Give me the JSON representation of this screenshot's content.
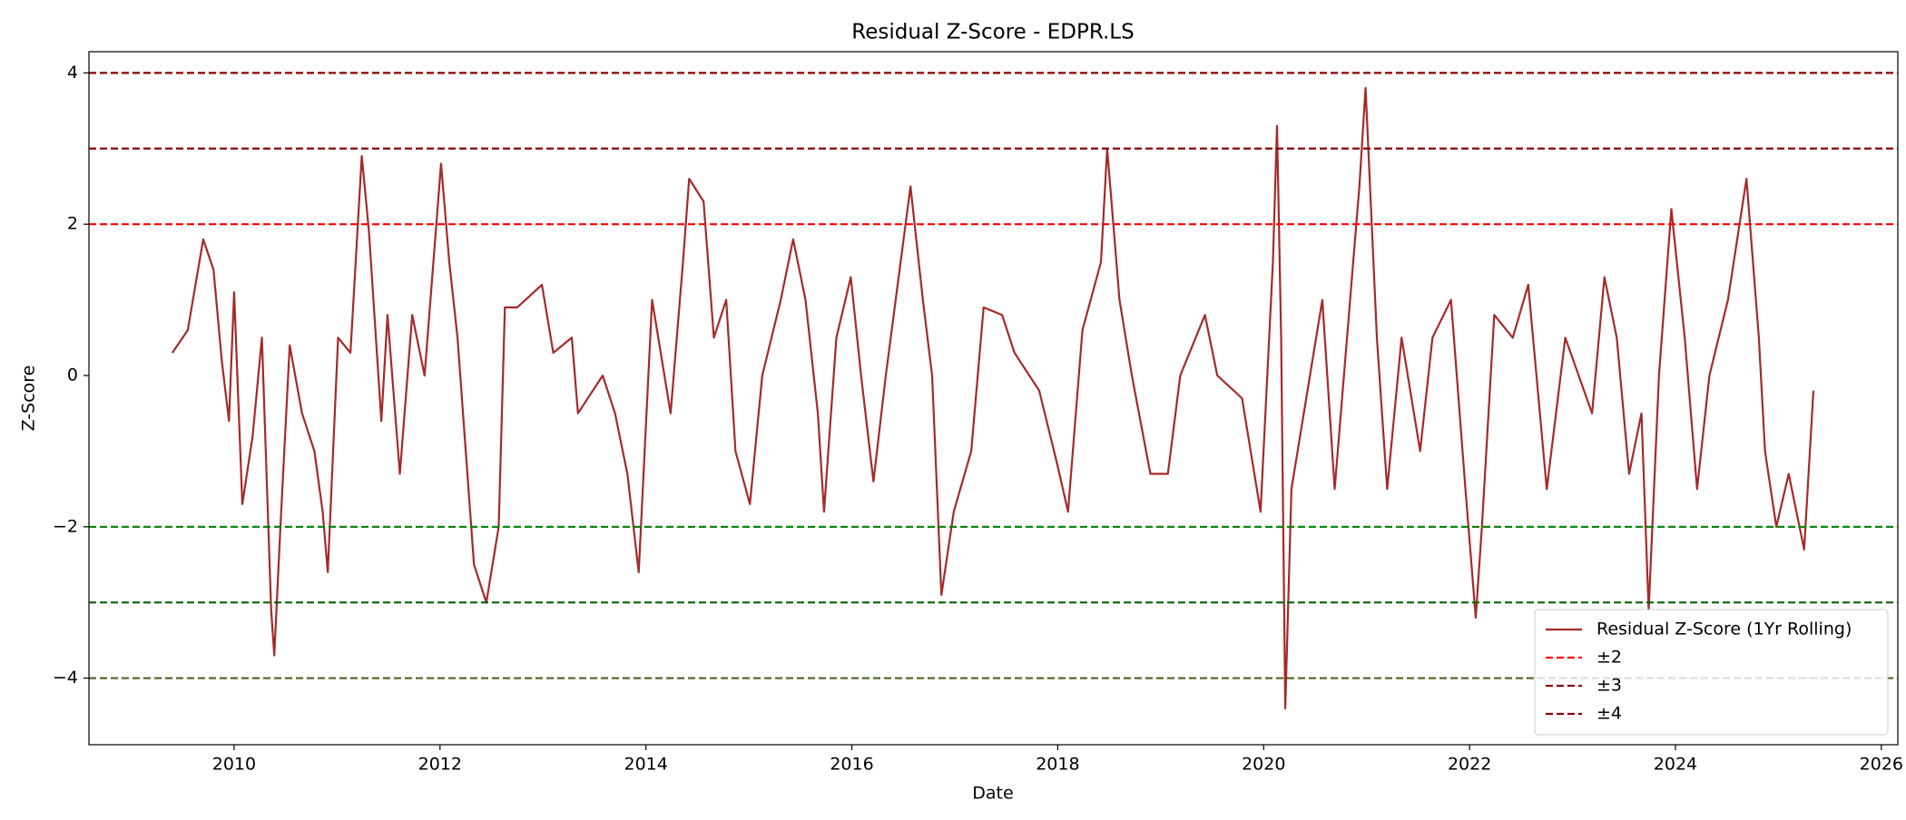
{
  "chart_data": {
    "type": "line",
    "title": "Residual Z-Score - EDPR.LS",
    "x_label": "Date",
    "y_label": "Z-Score",
    "x": [
      2009.4,
      2009.55,
      2009.7,
      2009.8,
      2009.88,
      2009.95,
      2010.0,
      2010.08,
      2010.18,
      2010.27,
      2010.36,
      2010.39,
      2010.45,
      2010.54,
      2010.66,
      2010.78,
      2010.86,
      2010.91,
      2011.01,
      2011.13,
      2011.24,
      2011.31,
      2011.43,
      2011.49,
      2011.61,
      2011.73,
      2011.85,
      2012.01,
      2012.09,
      2012.17,
      2012.33,
      2012.45,
      2012.57,
      2012.63,
      2012.75,
      2012.99,
      2013.1,
      2013.28,
      2013.34,
      2013.58,
      2013.7,
      2013.82,
      2013.93,
      2014.06,
      2014.24,
      2014.36,
      2014.42,
      2014.56,
      2014.66,
      2014.78,
      2014.87,
      2015.01,
      2015.13,
      2015.31,
      2015.43,
      2015.55,
      2015.67,
      2015.73,
      2015.85,
      2015.99,
      2016.09,
      2016.21,
      2016.33,
      2016.57,
      2016.69,
      2016.78,
      2016.87,
      2016.99,
      2017.16,
      2017.28,
      2017.46,
      2017.58,
      2017.82,
      2018.0,
      2018.1,
      2018.24,
      2018.42,
      2018.48,
      2018.6,
      2018.72,
      2018.9,
      2019.07,
      2019.19,
      2019.43,
      2019.55,
      2019.79,
      2019.97,
      2020.09,
      2020.13,
      2020.17,
      2020.21,
      2020.27,
      2020.39,
      2020.57,
      2020.69,
      2020.81,
      2020.93,
      2020.99,
      2021.05,
      2021.1,
      2021.2,
      2021.34,
      2021.52,
      2021.64,
      2021.82,
      2021.96,
      2022.06,
      2022.12,
      2022.24,
      2022.42,
      2022.57,
      2022.75,
      2022.93,
      2023.19,
      2023.31,
      2023.43,
      2023.55,
      2023.67,
      2023.74,
      2023.84,
      2023.96,
      2024.09,
      2024.21,
      2024.33,
      2024.51,
      2024.69,
      2024.81,
      2024.87,
      2024.98,
      2025.1,
      2025.25,
      2025.34
    ],
    "series": [
      {
        "name": "Residual Z-Score (1Yr Rolling)",
        "color": "#a52a2a",
        "values": [
          0.3,
          0.6,
          1.8,
          1.4,
          0.2,
          -0.6,
          1.1,
          -1.7,
          -0.8,
          0.5,
          -3.1,
          -3.7,
          -2.0,
          0.4,
          -0.5,
          -1.0,
          -1.8,
          -2.6,
          0.5,
          0.3,
          2.9,
          1.9,
          -0.6,
          0.8,
          -1.3,
          0.8,
          0.0,
          2.8,
          1.5,
          0.5,
          -2.5,
          -3.0,
          -2.0,
          0.9,
          0.9,
          1.2,
          0.3,
          0.5,
          -0.5,
          0.0,
          -0.5,
          -1.3,
          -2.6,
          1.0,
          -0.5,
          1.5,
          2.6,
          2.3,
          0.5,
          1.0,
          -1.0,
          -1.7,
          0.0,
          1.0,
          1.8,
          1.0,
          -0.5,
          -1.8,
          0.5,
          1.3,
          0.0,
          -1.4,
          0.0,
          2.5,
          1.0,
          0.0,
          -2.9,
          -1.8,
          -1.0,
          0.9,
          0.8,
          0.3,
          -0.2,
          -1.2,
          -1.8,
          0.6,
          1.5,
          3.0,
          1.0,
          0.0,
          -1.3,
          -1.3,
          0.0,
          0.8,
          0.0,
          -0.3,
          -1.8,
          1.5,
          3.3,
          0.5,
          -4.4,
          -1.5,
          -0.5,
          1.0,
          -1.5,
          0.5,
          2.5,
          3.8,
          2.0,
          0.5,
          -1.5,
          0.5,
          -1.0,
          0.5,
          1.0,
          -1.5,
          -3.2,
          -2.0,
          0.8,
          0.5,
          1.2,
          -1.5,
          0.5,
          -0.5,
          1.3,
          0.5,
          -1.3,
          -0.5,
          -3.1,
          0.0,
          2.2,
          0.5,
          -1.5,
          0.0,
          1.0,
          2.6,
          0.5,
          -1.0,
          -2.0,
          -1.3,
          -2.3,
          -0.2
        ]
      }
    ],
    "hlines": [
      {
        "value": 2,
        "color": "#ff0000",
        "label": "±2"
      },
      {
        "value": 3,
        "color": "#8b0000",
        "label": "±3"
      },
      {
        "value": 4,
        "color": "#8b0000",
        "label": "±4"
      },
      {
        "value": -2,
        "color": "#008000"
      },
      {
        "value": -3,
        "color": "#006400"
      },
      {
        "value": -4,
        "color": "#556b2f"
      }
    ],
    "xlim": [
      2008.59,
      2026.16
    ],
    "ylim": [
      -4.88,
      4.28
    ],
    "xticks": [
      2010,
      2012,
      2014,
      2016,
      2018,
      2020,
      2022,
      2024,
      2026
    ],
    "yticks": [
      {
        "value": -4,
        "label": "−4"
      },
      {
        "value": -2,
        "label": "−2"
      },
      0,
      2,
      4
    ],
    "legend": "lower right",
    "grid": false
  }
}
